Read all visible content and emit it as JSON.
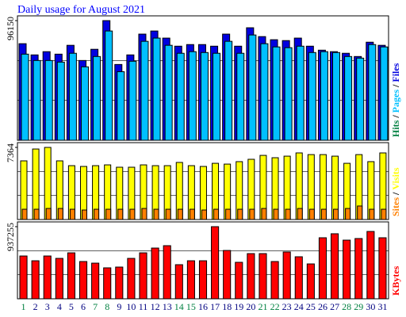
{
  "chart_data": [
    {
      "type": "bar",
      "title": "Daily usage for August 2021",
      "ylim": [
        0,
        96150
      ],
      "yticks": [
        96150
      ],
      "separator": "/",
      "series": [
        {
          "name": "Files",
          "color": "#0000e0",
          "values": [
            77600,
            68600,
            71200,
            69200,
            76300,
            64100,
            73100,
            96150,
            60900,
            68600,
            85300,
            87800,
            82100,
            75600,
            76900,
            76900,
            75600,
            85300,
            75600,
            90400,
            83300,
            80800,
            80100,
            82100,
            75600,
            72400,
            71200,
            69900,
            67300,
            78800,
            76300
          ]
        },
        {
          "name": "Pages",
          "color": "#00c0ff",
          "values": [
            69200,
            64100,
            64100,
            62800,
            69900,
            59000,
            67300,
            87800,
            55100,
            63500,
            79500,
            82100,
            76300,
            69900,
            71200,
            70500,
            69900,
            79500,
            69900,
            84600,
            77600,
            75000,
            74400,
            75600,
            70500,
            71200,
            70500,
            67300,
            66000,
            76900,
            75000
          ]
        },
        {
          "name": "Hits",
          "color": "#008040"
        }
      ]
    },
    {
      "type": "bar",
      "ylim": [
        0,
        7364
      ],
      "yticks": [
        7364
      ],
      "separator": "/",
      "series": [
        {
          "name": "Visits",
          "color": "#ffff00",
          "values": [
            5990,
            7200,
            7364,
            5990,
            5500,
            5420,
            5500,
            5580,
            5340,
            5340,
            5580,
            5500,
            5500,
            5830,
            5500,
            5420,
            5740,
            5660,
            5910,
            6150,
            6550,
            6310,
            6470,
            6800,
            6630,
            6630,
            6470,
            5740,
            6630,
            5910,
            6800
          ]
        },
        {
          "name": "Sites",
          "color": "#ff8000",
          "values": [
            1050,
            1050,
            1130,
            1130,
            1050,
            970,
            1050,
            1050,
            1050,
            1050,
            1130,
            1050,
            1050,
            1050,
            1050,
            970,
            1050,
            1050,
            1050,
            1050,
            1130,
            1050,
            1050,
            1130,
            1050,
            1050,
            1050,
            1130,
            1380,
            1050,
            1050
          ]
        }
      ]
    },
    {
      "type": "bar",
      "ylim": [
        0,
        937255
      ],
      "yticks": [
        937255
      ],
      "series": [
        {
          "name": "KBytes",
          "color": "#ff0000",
          "values": [
            556000,
            494000,
            556000,
            525000,
            597000,
            484000,
            463000,
            402000,
            412000,
            525000,
            597000,
            659000,
            690000,
            443000,
            494000,
            494000,
            937255,
            628000,
            474000,
            587000,
            587000,
            484000,
            608000,
            546000,
            453000,
            793000,
            845000,
            762000,
            783000,
            875000,
            793000
          ]
        }
      ],
      "categories": [
        "1",
        "2",
        "3",
        "4",
        "5",
        "6",
        "7",
        "8",
        "9",
        "10",
        "11",
        "12",
        "13",
        "14",
        "15",
        "16",
        "17",
        "18",
        "19",
        "20",
        "21",
        "22",
        "23",
        "24",
        "25",
        "26",
        "27",
        "28",
        "29",
        "30",
        "31"
      ],
      "category_colors": [
        "#008040",
        "#000080",
        "#000080",
        "#000080",
        "#000080",
        "#000080",
        "#008040",
        "#008040",
        "#000080",
        "#000080",
        "#000080",
        "#000080",
        "#000080",
        "#008040",
        "#008040",
        "#000080",
        "#000080",
        "#000080",
        "#000080",
        "#000080",
        "#008040",
        "#008040",
        "#000080",
        "#000080",
        "#000080",
        "#000080",
        "#000080",
        "#008040",
        "#008040",
        "#000080",
        "#000080"
      ]
    }
  ]
}
